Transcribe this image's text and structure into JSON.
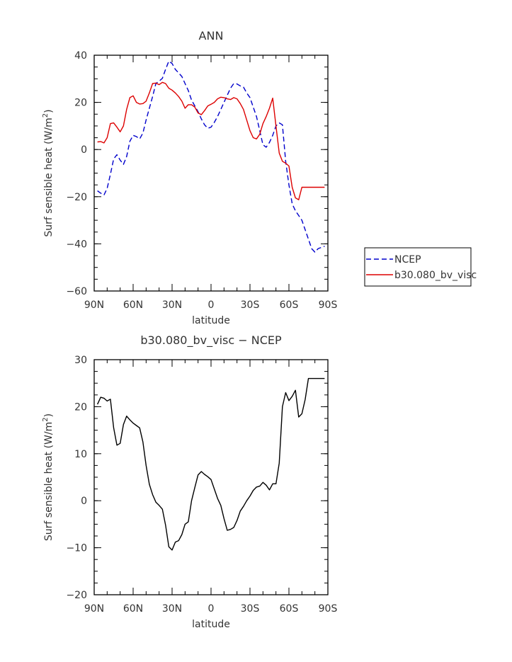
{
  "chart_data": [
    {
      "type": "line",
      "title": "ANN",
      "xlabel": "latitude",
      "ylabel": "Surf sensible heat (W/m",
      "ylabel_sup": "2",
      "ylabel_tail": ")",
      "xlim": [
        90,
        -90
      ],
      "ylim": [
        -60,
        40
      ],
      "xticks": [
        90,
        60,
        30,
        0,
        -30,
        -60,
        -90
      ],
      "xtick_labels": [
        "90N",
        "60N",
        "30N",
        "0",
        "30S",
        "60S",
        "90S"
      ],
      "yticks": [
        -60,
        -40,
        -20,
        0,
        20,
        40
      ],
      "ytick_labels": [
        "−60",
        "−40",
        "−20",
        "0",
        "20",
        "40"
      ],
      "legend": [
        {
          "label": "NCEP",
          "style": "dashed",
          "color": "#0000cc"
        },
        {
          "label": "b30.080_bv_visc",
          "style": "solid",
          "color": "#dd0000"
        }
      ],
      "series": [
        {
          "name": "NCEP",
          "color": "#0000cc",
          "dash": true,
          "x": [
            87.5,
            85,
            82.5,
            80,
            77.5,
            75,
            72.5,
            70,
            67.5,
            65,
            62.5,
            60,
            57.5,
            55,
            52.5,
            50,
            47.5,
            45,
            42.5,
            40,
            37.5,
            35,
            32.5,
            30,
            27.5,
            25,
            22.5,
            20,
            17.5,
            15,
            12.5,
            10,
            7.5,
            5,
            2.5,
            0,
            -2.5,
            -5,
            -7.5,
            -10,
            -12.5,
            -15,
            -17.5,
            -20,
            -22.5,
            -25,
            -27.5,
            -30,
            -32.5,
            -35,
            -37.5,
            -40,
            -42.5,
            -45,
            -47.5,
            -50,
            -52.5,
            -55,
            -57.5,
            -60,
            -62.5,
            -65,
            -67.5,
            -70,
            -72.5,
            -75,
            -77.5,
            -80,
            -82.5,
            -85,
            -87.5
          ],
          "y": [
            -17.5,
            -18.5,
            -19.3,
            -16.5,
            -10.5,
            -4,
            -2.2,
            -4.5,
            -6.3,
            -3,
            3.5,
            6,
            5.5,
            4.5,
            7,
            12.5,
            17.5,
            22.5,
            28,
            29,
            30.2,
            34,
            37.5,
            36.5,
            34,
            32.5,
            31,
            28,
            25,
            21,
            18.5,
            16,
            13,
            10.5,
            9,
            9.5,
            11.5,
            14,
            17,
            20,
            23,
            26,
            28,
            27.8,
            27,
            26.5,
            24,
            22,
            18,
            14,
            8,
            2,
            1,
            3,
            6,
            10,
            11.3,
            10.5,
            -5,
            -15,
            -23,
            -26,
            -28,
            -30,
            -34,
            -38,
            -42,
            -43.5,
            -42,
            -41.5,
            -41
          ]
        },
        {
          "name": "b30.080_bv_visc",
          "color": "#dd0000",
          "dash": false,
          "x": [
            87.5,
            85,
            82.5,
            80,
            77.5,
            75,
            72.5,
            70,
            67.5,
            65,
            62.5,
            60,
            57.5,
            55,
            52.5,
            50,
            47.5,
            45,
            42.5,
            40,
            37.5,
            35,
            32.5,
            30,
            27.5,
            25,
            22.5,
            20,
            17.5,
            15,
            12.5,
            10,
            7.5,
            5,
            2.5,
            0,
            -2.5,
            -5,
            -7.5,
            -10,
            -12.5,
            -15,
            -17.5,
            -20,
            -22.5,
            -25,
            -27.5,
            -30,
            -32.5,
            -35,
            -37.5,
            -40,
            -42.5,
            -45,
            -47.5,
            -50,
            -52.5,
            -55,
            -57.5,
            -60,
            -62.5,
            -65,
            -67.5,
            -70,
            -72.5,
            -75,
            -77.5,
            -80,
            -82.5,
            -85,
            -87.5
          ],
          "y": [
            3.2,
            3.4,
            2.8,
            5,
            11,
            11.3,
            9.5,
            7.5,
            10,
            17,
            22,
            22.8,
            20,
            19.3,
            19.5,
            20.5,
            24,
            28,
            28.2,
            27.5,
            28.5,
            28,
            26,
            25.2,
            24,
            22.5,
            20.5,
            17.5,
            19,
            19,
            18,
            15.5,
            14.8,
            16.5,
            18.5,
            19.2,
            20,
            21.5,
            22.2,
            22,
            21.5,
            21.2,
            22,
            21.5,
            19.5,
            17,
            12.5,
            8,
            5,
            4.5,
            6.5,
            11,
            14,
            17.5,
            21.8,
            10,
            -1.5,
            -5,
            -5.8,
            -7,
            -16,
            -20.5,
            -21.3,
            -16,
            -16,
            -16,
            -16,
            -16,
            -16,
            -16,
            -16
          ]
        }
      ]
    },
    {
      "type": "line",
      "title": "b30.080_bv_visc − NCEP",
      "xlabel": "latitude",
      "ylabel": "Surf sensible heat (W/m",
      "ylabel_sup": "2",
      "ylabel_tail": ")",
      "xlim": [
        90,
        -90
      ],
      "ylim": [
        -20,
        30
      ],
      "xticks": [
        90,
        60,
        30,
        0,
        -30,
        -60,
        -90
      ],
      "xtick_labels": [
        "90N",
        "60N",
        "30N",
        "0",
        "30S",
        "60S",
        "90S"
      ],
      "yticks": [
        -20,
        -10,
        0,
        10,
        20,
        30
      ],
      "ytick_labels": [
        "−20",
        "−10",
        "0",
        "10",
        "20",
        "30"
      ],
      "series": [
        {
          "color": "#000000",
          "dash": false,
          "x": [
            87.5,
            85,
            82.5,
            80,
            77.5,
            75,
            72.5,
            70,
            67.5,
            65,
            62.5,
            60,
            57.5,
            55,
            52.5,
            50,
            47.5,
            45,
            42.5,
            40,
            37.5,
            35,
            32.5,
            30,
            27.5,
            25,
            22.5,
            20,
            17.5,
            15,
            12.5,
            10,
            7.5,
            5,
            2.5,
            0,
            -2.5,
            -5,
            -7.5,
            -10,
            -12.5,
            -15,
            -17.5,
            -20,
            -22.5,
            -25,
            -27.5,
            -30,
            -32.5,
            -35,
            -37.5,
            -40,
            -42.5,
            -45,
            -47.5,
            -50,
            -52.5,
            -55,
            -57.5,
            -60,
            -62.5,
            -65,
            -67.5,
            -70,
            -72.5,
            -75,
            -77.5,
            -80,
            -82.5,
            -85,
            -87.5
          ],
          "y": [
            20.5,
            22,
            21.8,
            21.2,
            21.6,
            15.5,
            11.8,
            12.2,
            16.2,
            18,
            17.2,
            16.5,
            16,
            15.5,
            12.5,
            7.5,
            3.5,
            1.3,
            -0.3,
            -1,
            -1.8,
            -5.2,
            -9.8,
            -10.5,
            -8.8,
            -8.5,
            -7.2,
            -5,
            -4.5,
            0,
            2.8,
            5.5,
            6.2,
            5.6,
            5.1,
            4.5,
            2.5,
            0.5,
            -1,
            -3.8,
            -6.3,
            -6.1,
            -5.7,
            -4.2,
            -2.2,
            -1.2,
            0,
            1,
            2.2,
            2.9,
            3.1,
            3.9,
            3.3,
            2.3,
            3.6,
            3.6,
            8,
            20,
            23,
            21.3,
            22.2,
            23.5,
            17.8,
            18.5,
            21.5,
            26,
            26,
            26,
            26,
            26,
            26
          ]
        }
      ]
    }
  ]
}
